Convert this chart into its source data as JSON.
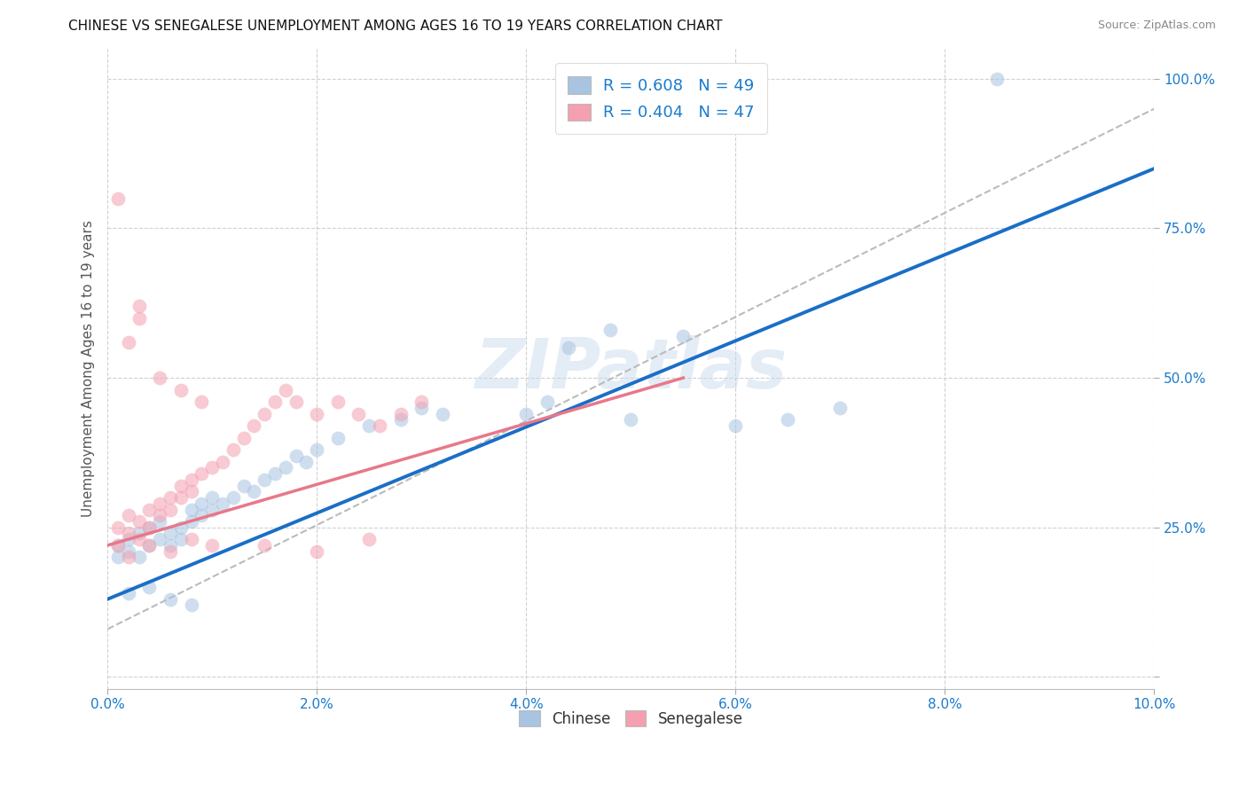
{
  "title": "CHINESE VS SENEGALESE UNEMPLOYMENT AMONG AGES 16 TO 19 YEARS CORRELATION CHART",
  "source": "Source: ZipAtlas.com",
  "ylabel": "Unemployment Among Ages 16 to 19 years",
  "x_min": 0.0,
  "x_max": 0.1,
  "y_min": 0.0,
  "y_max": 1.05,
  "x_ticks": [
    0.0,
    0.02,
    0.04,
    0.06,
    0.08,
    0.1
  ],
  "x_tick_labels": [
    "0.0%",
    "2.0%",
    "4.0%",
    "6.0%",
    "8.0%",
    "10.0%"
  ],
  "y_ticks": [
    0.0,
    0.25,
    0.5,
    0.75,
    1.0
  ],
  "y_tick_labels": [
    "",
    "25.0%",
    "50.0%",
    "75.0%",
    "100.0%"
  ],
  "chinese_color": "#a8c4e0",
  "senegalese_color": "#f4a0b0",
  "chinese_line_color": "#1a6ec7",
  "senegalese_line_color": "#e8788a",
  "diag_line_color": "#bbbbbb",
  "R_chinese": 0.608,
  "N_chinese": 49,
  "R_senegalese": 0.404,
  "N_senegalese": 47,
  "watermark": "ZIPatlas",
  "chinese_scatter_x": [
    0.001,
    0.001,
    0.002,
    0.002,
    0.003,
    0.003,
    0.004,
    0.004,
    0.005,
    0.005,
    0.006,
    0.006,
    0.007,
    0.007,
    0.008,
    0.008,
    0.009,
    0.009,
    0.01,
    0.01,
    0.011,
    0.012,
    0.013,
    0.014,
    0.015,
    0.016,
    0.017,
    0.018,
    0.019,
    0.02,
    0.022,
    0.025,
    0.028,
    0.03,
    0.032,
    0.04,
    0.042,
    0.044,
    0.048,
    0.05,
    0.055,
    0.06,
    0.065,
    0.07,
    0.085,
    0.002,
    0.004,
    0.006,
    0.008
  ],
  "chinese_scatter_y": [
    0.2,
    0.22,
    0.23,
    0.21,
    0.24,
    0.2,
    0.22,
    0.25,
    0.23,
    0.26,
    0.22,
    0.24,
    0.25,
    0.23,
    0.26,
    0.28,
    0.27,
    0.29,
    0.3,
    0.28,
    0.29,
    0.3,
    0.32,
    0.31,
    0.33,
    0.34,
    0.35,
    0.37,
    0.36,
    0.38,
    0.4,
    0.42,
    0.43,
    0.45,
    0.44,
    0.44,
    0.46,
    0.55,
    0.58,
    0.43,
    0.57,
    0.42,
    0.43,
    0.45,
    1.0,
    0.14,
    0.15,
    0.13,
    0.12
  ],
  "senegalese_scatter_x": [
    0.001,
    0.001,
    0.002,
    0.002,
    0.003,
    0.003,
    0.004,
    0.004,
    0.005,
    0.005,
    0.006,
    0.006,
    0.007,
    0.007,
    0.008,
    0.008,
    0.009,
    0.01,
    0.011,
    0.012,
    0.013,
    0.014,
    0.015,
    0.016,
    0.017,
    0.018,
    0.02,
    0.022,
    0.024,
    0.026,
    0.028,
    0.03,
    0.002,
    0.004,
    0.006,
    0.008,
    0.01,
    0.015,
    0.02,
    0.025,
    0.003,
    0.005,
    0.007,
    0.009,
    0.001,
    0.002,
    0.003
  ],
  "senegalese_scatter_y": [
    0.22,
    0.25,
    0.24,
    0.27,
    0.23,
    0.26,
    0.25,
    0.28,
    0.27,
    0.29,
    0.28,
    0.3,
    0.3,
    0.32,
    0.31,
    0.33,
    0.34,
    0.35,
    0.36,
    0.38,
    0.4,
    0.42,
    0.44,
    0.46,
    0.48,
    0.46,
    0.44,
    0.46,
    0.44,
    0.42,
    0.44,
    0.46,
    0.2,
    0.22,
    0.21,
    0.23,
    0.22,
    0.22,
    0.21,
    0.23,
    0.6,
    0.5,
    0.48,
    0.46,
    0.8,
    0.56,
    0.62
  ],
  "chinese_line_x": [
    0.0,
    0.1
  ],
  "chinese_line_y": [
    0.13,
    0.85
  ],
  "senegalese_line_x": [
    0.0,
    0.055
  ],
  "senegalese_line_y": [
    0.22,
    0.5
  ],
  "diag_line_x": [
    0.0,
    0.1
  ],
  "diag_line_y": [
    0.08,
    0.95
  ]
}
